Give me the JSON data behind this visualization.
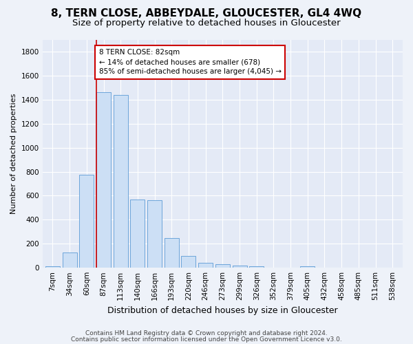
{
  "title": "8, TERN CLOSE, ABBEYDALE, GLOUCESTER, GL4 4WQ",
  "subtitle": "Size of property relative to detached houses in Gloucester",
  "xlabel": "Distribution of detached houses by size in Gloucester",
  "ylabel": "Number of detached properties",
  "categories": [
    "7sqm",
    "34sqm",
    "60sqm",
    "87sqm",
    "113sqm",
    "140sqm",
    "166sqm",
    "193sqm",
    "220sqm",
    "246sqm",
    "273sqm",
    "299sqm",
    "326sqm",
    "352sqm",
    "379sqm",
    "405sqm",
    "432sqm",
    "458sqm",
    "485sqm",
    "511sqm",
    "538sqm"
  ],
  "values": [
    10,
    125,
    775,
    1460,
    1440,
    570,
    560,
    245,
    100,
    40,
    30,
    20,
    15,
    0,
    0,
    15,
    0,
    0,
    0,
    0,
    0
  ],
  "bar_color": "#ccdff5",
  "bar_edge_color": "#5b9bd5",
  "annotation_text": "8 TERN CLOSE: 82sqm\n← 14% of detached houses are smaller (678)\n85% of semi-detached houses are larger (4,045) →",
  "annotation_box_color": "#ffffff",
  "annotation_box_edge_color": "#cc0000",
  "vline_color": "#cc0000",
  "vline_x": 2.57,
  "footer1": "Contains HM Land Registry data © Crown copyright and database right 2024.",
  "footer2": "Contains public sector information licensed under the Open Government Licence v3.0.",
  "ylim": [
    0,
    1900
  ],
  "yticks": [
    0,
    200,
    400,
    600,
    800,
    1000,
    1200,
    1400,
    1600,
    1800
  ],
  "bg_color": "#eef2f9",
  "plot_bg_color": "#e4eaf6",
  "grid_color": "#ffffff",
  "title_fontsize": 11,
  "subtitle_fontsize": 9.5,
  "xlabel_fontsize": 9,
  "ylabel_fontsize": 8,
  "tick_fontsize": 7.5,
  "annotation_fontsize": 7.5,
  "footer_fontsize": 6.5
}
